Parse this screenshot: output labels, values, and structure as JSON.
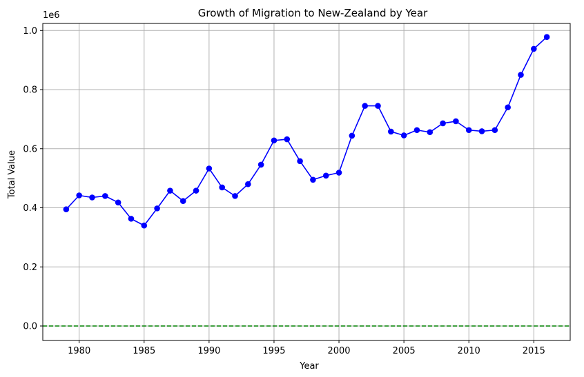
{
  "chart_data": {
    "type": "line",
    "title": "Growth of Migration to New-Zealand by Year",
    "xlabel": "Year",
    "ylabel": "Total Value",
    "y_offset_label": "1e6",
    "xlim": [
      1977.2,
      2017.8
    ],
    "ylim": [
      -0.049,
      1.024
    ],
    "x_ticks": [
      1980,
      1985,
      1990,
      1995,
      2000,
      2005,
      2010,
      2015
    ],
    "y_ticks": [
      0.0,
      0.2,
      0.4,
      0.6,
      0.8,
      1.0
    ],
    "x_tick_labels": [
      "1980",
      "1985",
      "1990",
      "1995",
      "2000",
      "2005",
      "2010",
      "2015"
    ],
    "y_tick_labels": [
      "0.0",
      "0.2",
      "0.4",
      "0.6",
      "0.8",
      "1.0"
    ],
    "grid": true,
    "series": [
      {
        "color": "#0000ff",
        "marker": "circle",
        "x": [
          1979,
          1980,
          1981,
          1982,
          1983,
          1984,
          1985,
          1986,
          1987,
          1988,
          1989,
          1990,
          1991,
          1992,
          1993,
          1994,
          1995,
          1996,
          1997,
          1998,
          1999,
          2000,
          2001,
          2002,
          2003,
          2004,
          2005,
          2006,
          2007,
          2008,
          2009,
          2010,
          2011,
          2012,
          2013,
          2014,
          2015,
          2016
        ],
        "y": [
          0.395,
          0.442,
          0.435,
          0.44,
          0.418,
          0.363,
          0.34,
          0.398,
          0.458,
          0.423,
          0.458,
          0.533,
          0.469,
          0.44,
          0.48,
          0.546,
          0.628,
          0.632,
          0.558,
          0.495,
          0.509,
          0.519,
          0.644,
          0.745,
          0.745,
          0.658,
          0.645,
          0.663,
          0.656,
          0.686,
          0.693,
          0.663,
          0.659,
          0.663,
          0.74,
          0.85,
          0.938,
          0.978
        ]
      }
    ],
    "reference_line": {
      "y": 0,
      "color": "#008000",
      "style": "dashed"
    }
  }
}
